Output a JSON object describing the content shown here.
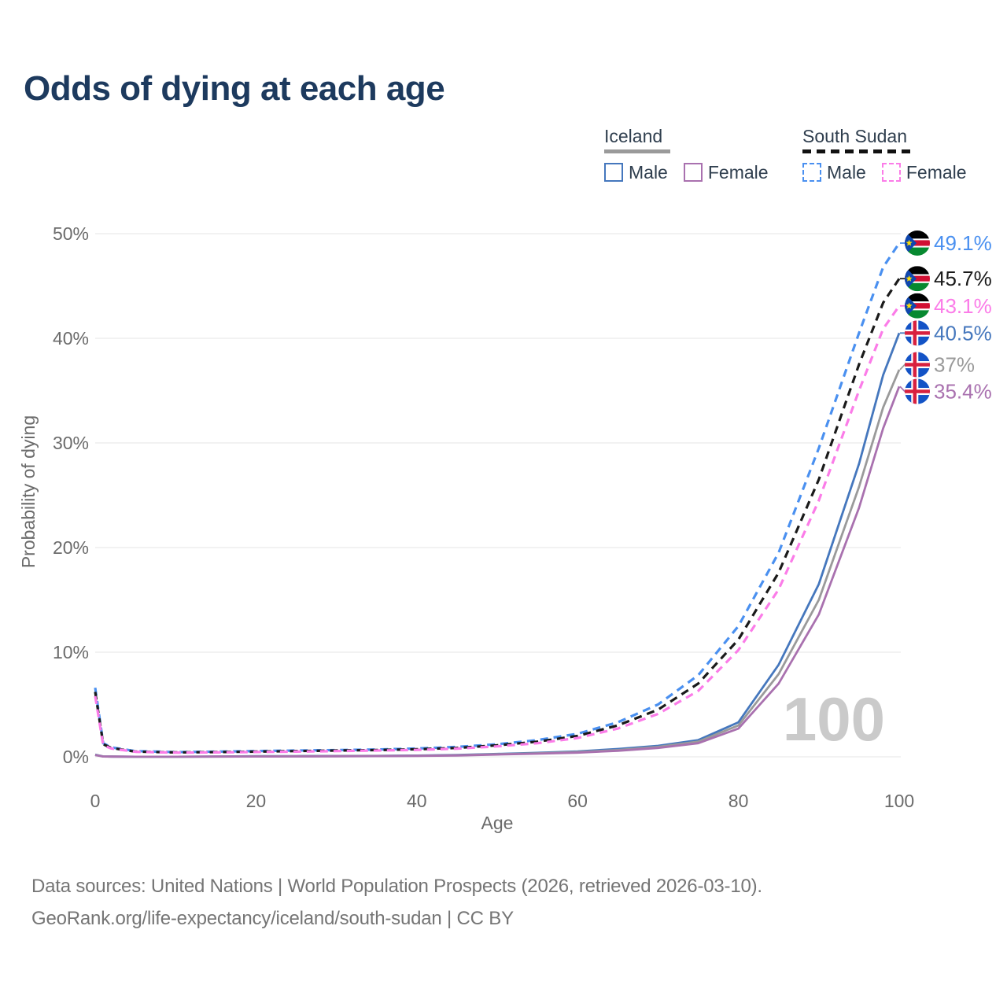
{
  "title": "Odds of dying at each age",
  "watermark": "100",
  "legend": {
    "groups": [
      {
        "country": "Iceland",
        "line_style": "solid",
        "line_color": "#9a9a9a",
        "items": [
          {
            "label": "Male",
            "color": "#4577bd",
            "dashed": false
          },
          {
            "label": "Female",
            "color": "#a971af",
            "dashed": false
          }
        ]
      },
      {
        "country": "South Sudan",
        "line_style": "dashed",
        "line_color": "#111111",
        "items": [
          {
            "label": "Male",
            "color": "#4a90f0",
            "dashed": true
          },
          {
            "label": "Female",
            "color": "#fb7ce8",
            "dashed": true
          }
        ]
      }
    ]
  },
  "footer": {
    "line1": "Data sources: United Nations | World Population Prospects (2026, retrieved 2026-03-10).",
    "line2": "GeoRank.org/life-expectancy/iceland/south-sudan | CC BY"
  },
  "chart_data": {
    "type": "line",
    "title": "Odds of dying at each age",
    "xlabel": "Age",
    "ylabel": "Probability of dying",
    "xlim": [
      0,
      100
    ],
    "ylim": [
      0,
      50
    ],
    "x_ticks": [
      0,
      20,
      40,
      60,
      80,
      100
    ],
    "y_ticks": [
      0,
      10,
      20,
      30,
      40,
      50
    ],
    "y_tick_suffix": "%",
    "grid": true,
    "legend_position": "top-right",
    "axis_color": "#6b6b6b",
    "grid_color": "#e9e9e9",
    "x": [
      0,
      1,
      2,
      5,
      10,
      15,
      20,
      25,
      30,
      35,
      40,
      45,
      50,
      55,
      60,
      65,
      70,
      75,
      80,
      85,
      90,
      95,
      98,
      100
    ],
    "series": [
      {
        "name": "South Sudan Male",
        "color": "#4a90f0",
        "dash": true,
        "flag": "south-sudan",
        "end_label": "49.1%",
        "values": [
          6.6,
          1.3,
          0.9,
          0.55,
          0.45,
          0.5,
          0.55,
          0.6,
          0.65,
          0.7,
          0.8,
          0.95,
          1.2,
          1.6,
          2.2,
          3.3,
          5.0,
          7.8,
          12.5,
          19.5,
          29.5,
          40.5,
          46.8,
          49.1
        ]
      },
      {
        "name": "South Sudan",
        "color": "#1a1a1a",
        "dash": true,
        "flag": "south-sudan",
        "end_label": "45.7%",
        "values": [
          6.2,
          1.2,
          0.85,
          0.5,
          0.42,
          0.45,
          0.5,
          0.55,
          0.6,
          0.65,
          0.72,
          0.85,
          1.1,
          1.45,
          2.0,
          3.0,
          4.5,
          7.0,
          11.2,
          17.6,
          26.5,
          37.5,
          43.4,
          45.7
        ]
      },
      {
        "name": "South Sudan Female",
        "color": "#fb7ce8",
        "dash": true,
        "flag": "south-sudan",
        "end_label": "43.1%",
        "values": [
          5.8,
          1.1,
          0.8,
          0.48,
          0.4,
          0.42,
          0.46,
          0.5,
          0.55,
          0.6,
          0.66,
          0.78,
          1.0,
          1.3,
          1.8,
          2.7,
          4.1,
          6.3,
          10.2,
          16.0,
          24.5,
          35.0,
          40.9,
          43.1
        ]
      },
      {
        "name": "Iceland Male",
        "color": "#4577bd",
        "dash": false,
        "flag": "iceland",
        "end_label": "40.5%",
        "values": [
          0.2,
          0.04,
          0.02,
          0.01,
          0.01,
          0.03,
          0.06,
          0.07,
          0.08,
          0.09,
          0.12,
          0.18,
          0.28,
          0.38,
          0.52,
          0.75,
          1.05,
          1.6,
          3.3,
          8.8,
          16.5,
          28.0,
          36.5,
          40.5
        ]
      },
      {
        "name": "Iceland",
        "color": "#9a9a9a",
        "dash": false,
        "flag": "iceland",
        "end_label": "37%",
        "values": [
          0.18,
          0.03,
          0.02,
          0.01,
          0.01,
          0.02,
          0.04,
          0.05,
          0.06,
          0.08,
          0.1,
          0.15,
          0.25,
          0.34,
          0.46,
          0.65,
          0.95,
          1.45,
          3.0,
          7.9,
          15.0,
          25.8,
          33.4,
          37.0
        ]
      },
      {
        "name": "Iceland Female",
        "color": "#a971af",
        "dash": false,
        "flag": "iceland",
        "end_label": "35.4%",
        "values": [
          0.17,
          0.03,
          0.02,
          0.01,
          0.01,
          0.02,
          0.03,
          0.04,
          0.05,
          0.07,
          0.09,
          0.13,
          0.22,
          0.3,
          0.4,
          0.58,
          0.85,
          1.3,
          2.7,
          7.0,
          13.6,
          23.8,
          31.4,
          35.4
        ]
      }
    ],
    "flag_colors": {
      "south_sudan_black": "#000000",
      "south_sudan_red": "#D21034",
      "south_sudan_green": "#078930",
      "south_sudan_blue": "#0F47AF",
      "south_sudan_star": "#FCDD09",
      "iceland_blue": "#1353c6",
      "iceland_red": "#d8203f",
      "white": "#ffffff"
    }
  }
}
